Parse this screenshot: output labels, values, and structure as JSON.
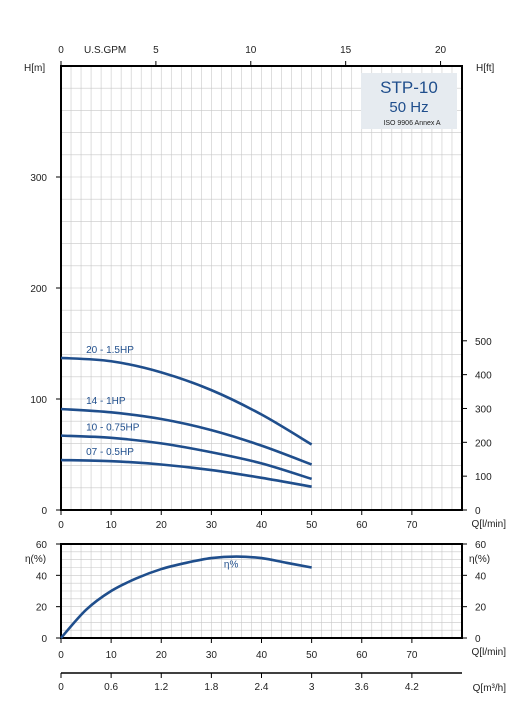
{
  "chart_data": [
    {
      "type": "line",
      "title": "STP-10",
      "subtitle": "50 Hz",
      "note": "ISO 9906 Annex A",
      "colors": {
        "curve": "#1f4e8c",
        "grid": "#c8c8c8",
        "frame": "#000000",
        "box": "#e6ebf0"
      },
      "grid": true,
      "x_axis": {
        "label": "Q[l/min]",
        "ticks": [
          "0",
          "10",
          "20",
          "30",
          "40",
          "50",
          "60",
          "70"
        ],
        "range": [
          0,
          80
        ]
      },
      "x_axis_top": {
        "label": "U.S.GPM",
        "ticks": [
          "0",
          "5",
          "10",
          "15",
          "20"
        ],
        "range": [
          0,
          21.13
        ]
      },
      "y_axis_left": {
        "label": "H[m]",
        "ticks": [
          "0",
          "100",
          "200",
          "300"
        ],
        "range": [
          0,
          400
        ]
      },
      "y_axis_right": {
        "label": "H[ft]",
        "ticks": [
          "0",
          "100",
          "200",
          "300",
          "400",
          "500"
        ],
        "range": [
          0,
          1312
        ]
      },
      "series": [
        {
          "name": "20 - 1.5HP",
          "x": [
            0,
            10,
            20,
            30,
            40,
            50
          ],
          "y": [
            137,
            134,
            124,
            108,
            86,
            59
          ]
        },
        {
          "name": "14 - 1HP",
          "x": [
            0,
            10,
            20,
            30,
            40,
            50
          ],
          "y": [
            91,
            88,
            82,
            72,
            58,
            41
          ]
        },
        {
          "name": "10 - 0.75HP",
          "x": [
            0,
            10,
            20,
            30,
            40,
            50
          ],
          "y": [
            67,
            65,
            60,
            52,
            42,
            28
          ]
        },
        {
          "name": "07 - 0.5HP",
          "x": [
            0,
            10,
            20,
            30,
            40,
            50
          ],
          "y": [
            45,
            44,
            41,
            36,
            29,
            21
          ]
        }
      ]
    },
    {
      "type": "line",
      "grid": true,
      "x_axis": {
        "label": "Q[l/min]",
        "ticks": [
          "0",
          "10",
          "20",
          "30",
          "40",
          "50",
          "60",
          "70"
        ],
        "range": [
          0,
          80
        ]
      },
      "y_axis_left": {
        "label": "η(%)",
        "ticks": [
          "0",
          "20",
          "40",
          "60"
        ],
        "range": [
          0,
          60
        ]
      },
      "y_axis_right": {
        "label": "η(%)",
        "ticks": [
          "0",
          "20",
          "40",
          "60"
        ],
        "range": [
          0,
          60
        ]
      },
      "series": [
        {
          "name": "η%",
          "x": [
            0,
            5,
            10,
            15,
            20,
            25,
            30,
            35,
            40,
            45,
            50
          ],
          "y": [
            0,
            18,
            30,
            38,
            44,
            48,
            51,
            52,
            51,
            48,
            45
          ]
        }
      ]
    },
    {
      "type": "axis",
      "x_axis": {
        "label": "Q[m³/h]",
        "ticks": [
          "0",
          "0.6",
          "1.2",
          "1.8",
          "2.4",
          "3",
          "3.6",
          "4.2"
        ],
        "range": [
          0,
          4.8
        ]
      }
    }
  ]
}
